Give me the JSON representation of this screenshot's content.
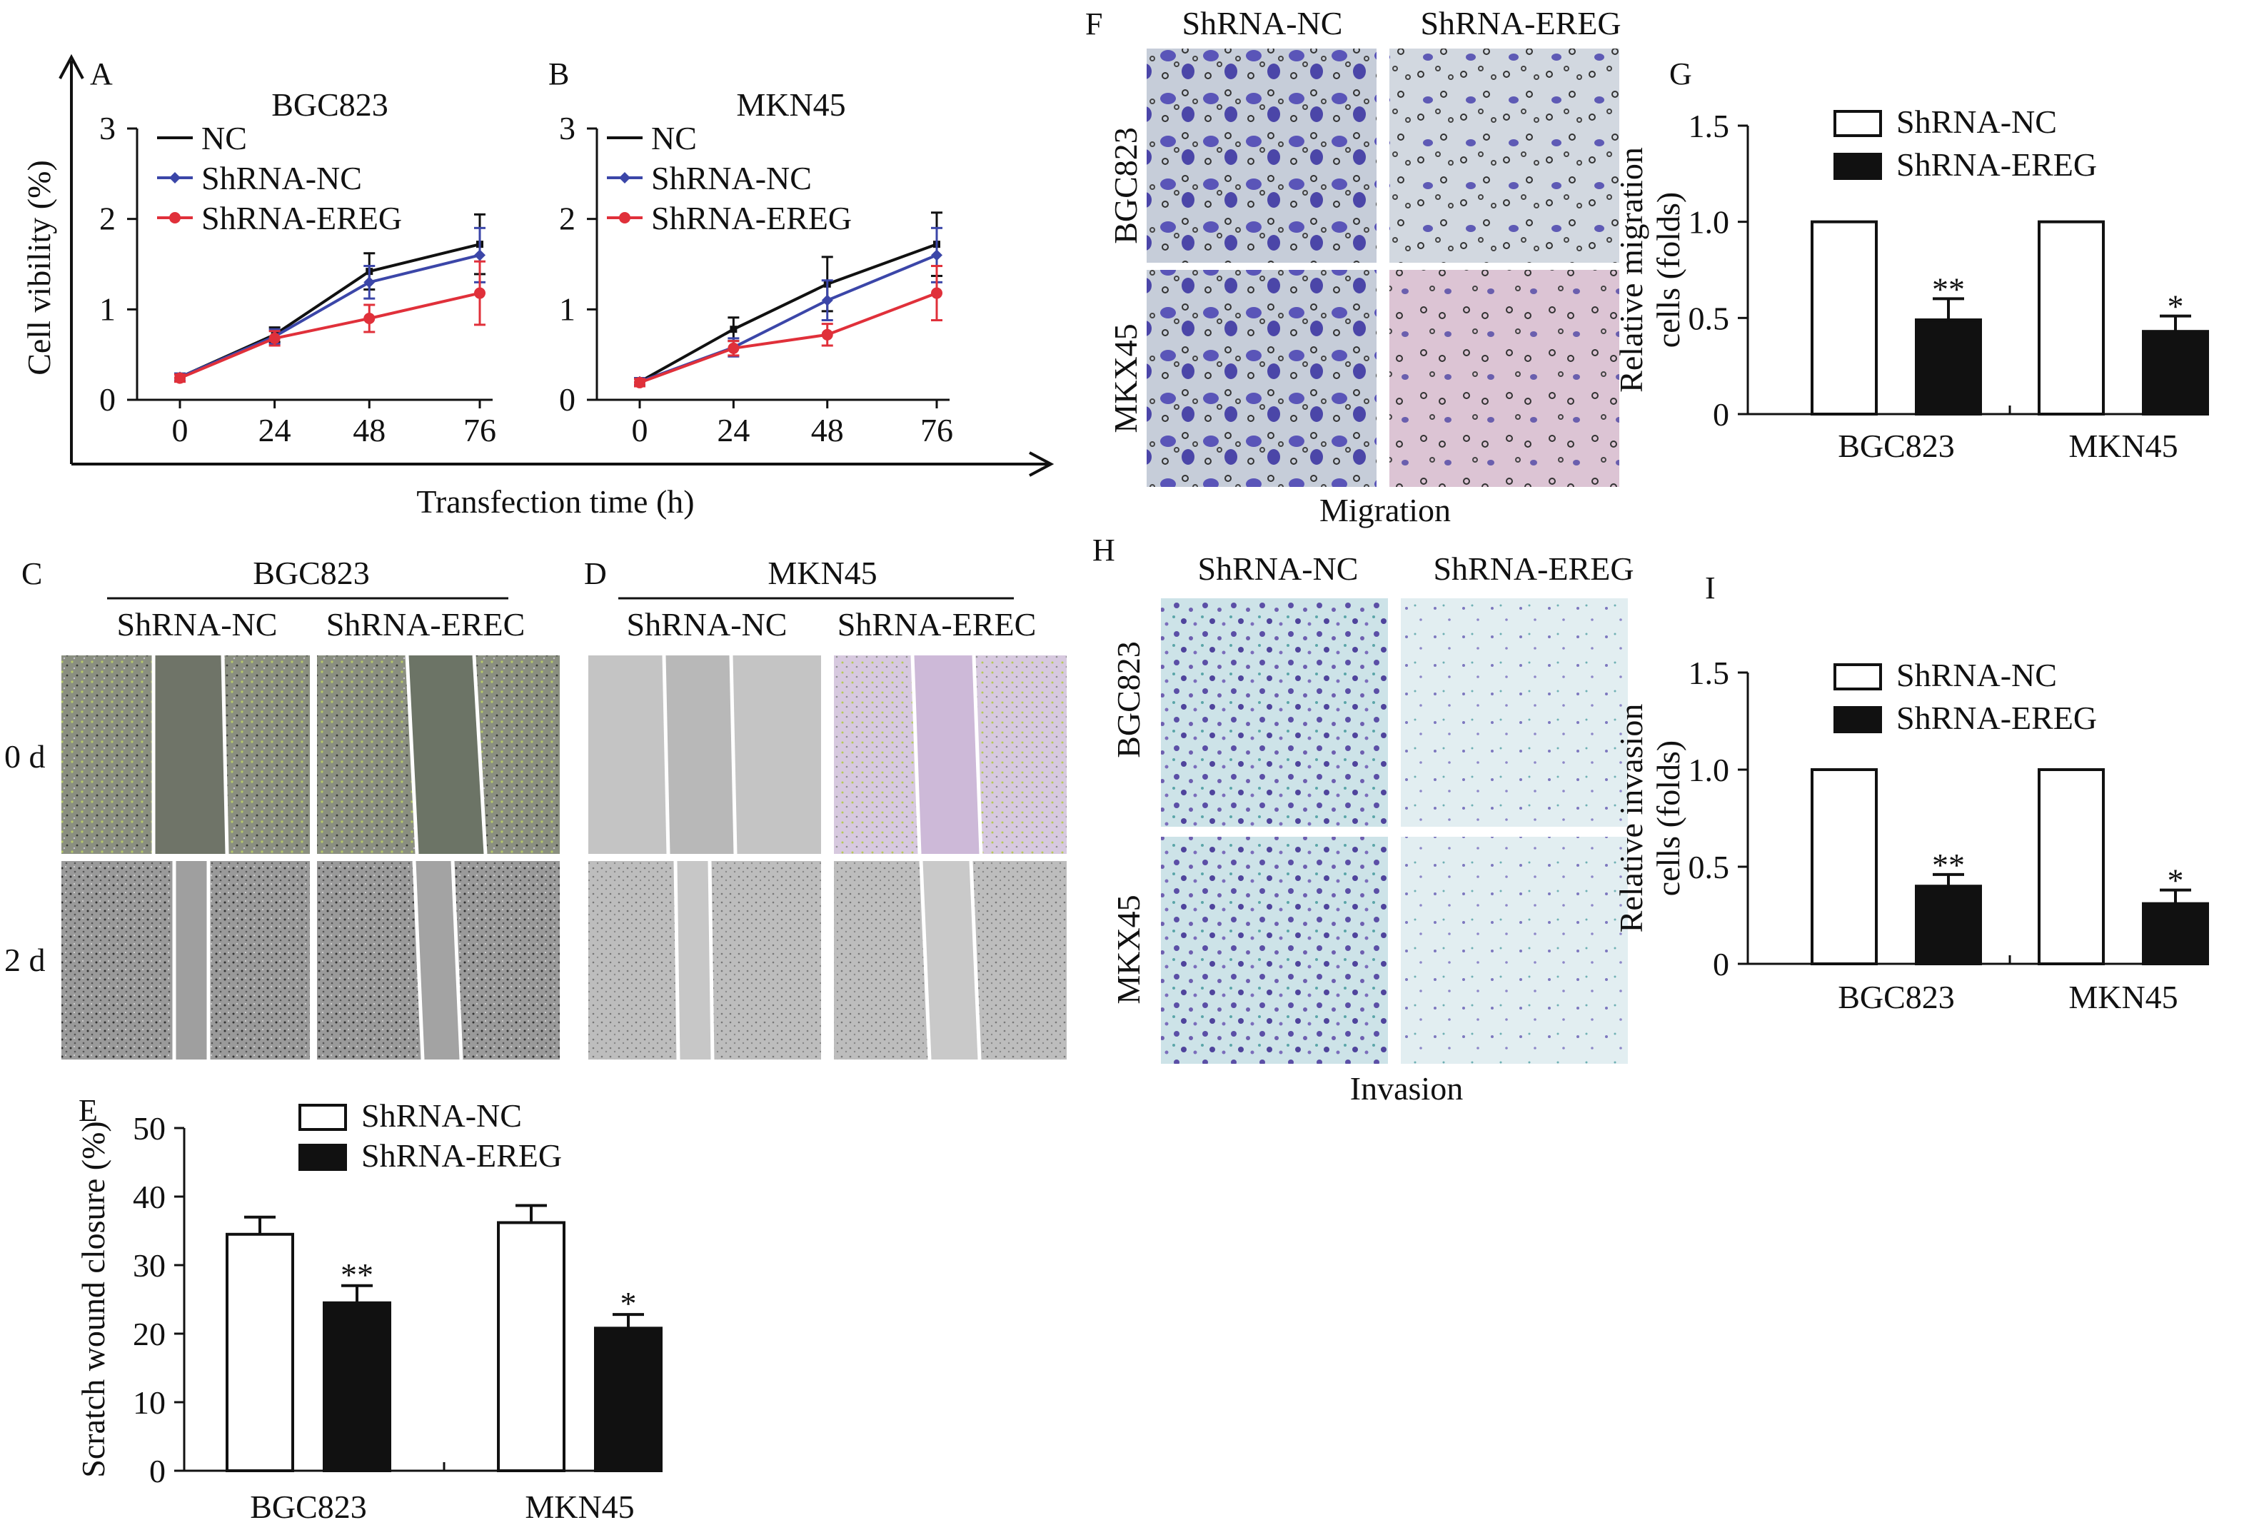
{
  "panels": {
    "A": "A",
    "B": "B",
    "C": "C",
    "D": "D",
    "E": "E",
    "F": "F",
    "G": "G",
    "H": "H",
    "I": "I"
  },
  "colors": {
    "nc": "#111111",
    "shrna_nc": "#3b46a8",
    "shrna_ereg": "#e0303a",
    "bar_nc": "#ffffff",
    "bar_ereg": "#111111"
  },
  "shared": {
    "transfection_xlabel": "Transfection time (h)",
    "viability_ylabel": "Cell vibility (%)"
  },
  "scratch": {
    "C_title": "BGC823",
    "D_title": "MKN45",
    "C_left": "ShRNA-NC",
    "C_right": "ShRNA-EREC",
    "D_left": "ShRNA-NC",
    "D_right": "ShRNA-EREC",
    "row0": "0 d",
    "row2": "2 d"
  },
  "micro": {
    "F_col1": "ShRNA-NC",
    "F_col2": "ShRNA-EREG",
    "F_row1": "BGC823",
    "F_row2": "MKX45",
    "F_caption": "Migration",
    "H_col1": "ShRNA-NC",
    "H_col2": "ShRNA-EREG",
    "H_row1": "BGC823",
    "H_row2": "MKX45",
    "H_caption": "Invasion"
  },
  "chart_data": [
    {
      "id": "A",
      "type": "line",
      "title": "BGC823",
      "x": [
        0,
        24,
        48,
        76
      ],
      "xticks": [
        "0",
        "24",
        "48",
        "76"
      ],
      "ylim": [
        0,
        3
      ],
      "yticks": [
        0,
        1,
        2,
        3
      ],
      "series": [
        {
          "name": "NC",
          "values": [
            0.25,
            0.72,
            1.42,
            1.72
          ],
          "errors": [
            0.04,
            0.08,
            0.2,
            0.33
          ]
        },
        {
          "name": "ShRNA-NC",
          "values": [
            0.25,
            0.7,
            1.3,
            1.6
          ],
          "errors": [
            0.04,
            0.08,
            0.18,
            0.3
          ]
        },
        {
          "name": "ShRNA-EREG",
          "values": [
            0.24,
            0.68,
            0.9,
            1.18
          ],
          "errors": [
            0.04,
            0.08,
            0.15,
            0.35
          ]
        }
      ]
    },
    {
      "id": "B",
      "type": "line",
      "title": "MKN45",
      "x": [
        0,
        24,
        48,
        76
      ],
      "xticks": [
        "0",
        "24",
        "48",
        "76"
      ],
      "ylim": [
        0,
        3
      ],
      "yticks": [
        0,
        1,
        2,
        3
      ],
      "series": [
        {
          "name": "NC",
          "values": [
            0.2,
            0.78,
            1.28,
            1.72
          ],
          "errors": [
            0.04,
            0.13,
            0.3,
            0.35
          ]
        },
        {
          "name": "ShRNA-NC",
          "values": [
            0.2,
            0.58,
            1.1,
            1.6
          ],
          "errors": [
            0.04,
            0.1,
            0.22,
            0.3
          ]
        },
        {
          "name": "ShRNA-EREG",
          "values": [
            0.19,
            0.57,
            0.72,
            1.18
          ],
          "errors": [
            0.04,
            0.08,
            0.12,
            0.3
          ]
        }
      ]
    },
    {
      "id": "E",
      "type": "bar",
      "ylabel": "Scratch wound closure (%)",
      "categories": [
        "BGC823",
        "MKN45"
      ],
      "ylim": [
        0,
        50
      ],
      "yticks": [
        0,
        10,
        20,
        30,
        40,
        50
      ],
      "series": [
        {
          "name": "ShRNA-NC",
          "values": [
            34.5,
            36.2
          ],
          "errors": [
            2.5,
            2.5
          ]
        },
        {
          "name": "ShRNA-EREG",
          "values": [
            24.5,
            20.8
          ],
          "errors": [
            2.5,
            2.0
          ]
        }
      ],
      "significance": [
        "**",
        "*"
      ]
    },
    {
      "id": "G",
      "type": "bar",
      "ylabel": "Relative migration cells (folds)",
      "categories": [
        "BGC823",
        "MKN45"
      ],
      "ylim": [
        0,
        1.5
      ],
      "yticks": [
        0,
        0.5,
        1.0,
        1.5
      ],
      "ytick_labels": [
        "0",
        "0.5",
        "1.0",
        "1.5"
      ],
      "series": [
        {
          "name": "ShRNA-NC",
          "values": [
            1.0,
            1.0
          ],
          "errors": [
            0,
            0
          ]
        },
        {
          "name": "ShRNA-EREG",
          "values": [
            0.49,
            0.43
          ],
          "errors": [
            0.11,
            0.08
          ]
        }
      ],
      "significance": [
        "**",
        "*"
      ]
    },
    {
      "id": "I",
      "type": "bar",
      "ylabel": "Relative invasion cells (folds)",
      "categories": [
        "BGC823",
        "MKN45"
      ],
      "ylim": [
        0,
        1.5
      ],
      "yticks": [
        0,
        0.5,
        1.0,
        1.5
      ],
      "ytick_labels": [
        "0",
        "0.5",
        "1.0",
        "1.5"
      ],
      "series": [
        {
          "name": "ShRNA-NC",
          "values": [
            1.0,
            1.0
          ],
          "errors": [
            0,
            0
          ]
        },
        {
          "name": "ShRNA-EREG",
          "values": [
            0.4,
            0.31
          ],
          "errors": [
            0.06,
            0.07
          ]
        }
      ],
      "significance": [
        "**",
        "*"
      ]
    }
  ]
}
